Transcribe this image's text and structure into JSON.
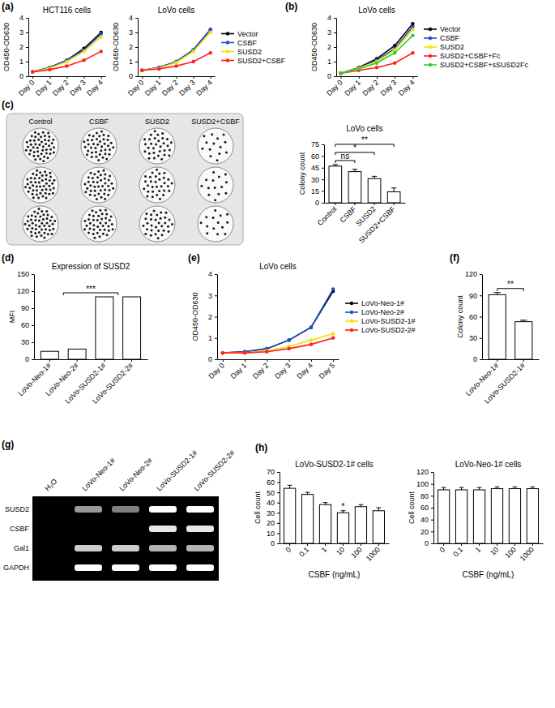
{
  "chart_data": [
    {
      "type": "line",
      "panel": "(a)",
      "title": "HCT116 cells",
      "y_label": "OD450-OD630",
      "categories": [
        "Day 0",
        "Day 1",
        "Day 2",
        "Day 3",
        "Day 4"
      ],
      "ylim": [
        0,
        4
      ],
      "yticks": [
        0,
        1,
        2,
        3,
        4
      ],
      "marker": "circle",
      "series": [
        {
          "color": "#000000",
          "values": [
            0.3,
            0.6,
            1.1,
            1.9,
            3.0
          ]
        },
        {
          "color": "#1f4fd0",
          "values": [
            0.3,
            0.6,
            1.1,
            1.8,
            2.9
          ]
        },
        {
          "color": "#f2e200",
          "values": [
            0.3,
            0.55,
            1.0,
            1.7,
            2.7
          ]
        },
        {
          "color": "#ff2020",
          "values": [
            0.3,
            0.45,
            0.7,
            1.1,
            1.7
          ]
        }
      ]
    },
    {
      "type": "line",
      "title": "LoVo cells",
      "y_label": "OD450-OD630",
      "categories": [
        "Day 0",
        "Day 1",
        "Day 2",
        "Day 3",
        "Day 4"
      ],
      "ylim": [
        0,
        4
      ],
      "yticks": [
        0,
        1,
        2,
        3,
        4
      ],
      "marker": "circle",
      "legend": "right",
      "series": [
        {
          "name": "Vector",
          "color": "#000000",
          "values": [
            0.4,
            0.6,
            1.0,
            1.8,
            3.2
          ]
        },
        {
          "name": "CSBF",
          "color": "#1f4fd0",
          "values": [
            0.4,
            0.6,
            1.0,
            1.8,
            3.2
          ]
        },
        {
          "name": "SUSD2",
          "color": "#f2e200",
          "values": [
            0.4,
            0.55,
            0.95,
            1.7,
            3.0
          ]
        },
        {
          "name": "SUSD2+CSBF",
          "color": "#ff2020",
          "values": [
            0.4,
            0.5,
            0.7,
            1.0,
            1.6
          ]
        }
      ]
    },
    {
      "type": "line",
      "panel": "(b)",
      "title": "LoVo cells",
      "y_label": "OD450-OD630",
      "categories": [
        "Day 0",
        "Day 1",
        "Day 2",
        "Day 3",
        "Day 4"
      ],
      "ylim": [
        0,
        4
      ],
      "yticks": [
        0,
        1,
        2,
        3,
        4
      ],
      "marker": "circle",
      "legend": "right",
      "series": [
        {
          "name": "Vector",
          "color": "#000000",
          "values": [
            0.2,
            0.6,
            1.2,
            2.1,
            3.6
          ]
        },
        {
          "name": "CSBF",
          "color": "#1f4fd0",
          "values": [
            0.2,
            0.55,
            1.1,
            1.9,
            3.4
          ]
        },
        {
          "name": "SUSD2",
          "color": "#f2e200",
          "values": [
            0.2,
            0.55,
            1.0,
            1.8,
            3.2
          ]
        },
        {
          "name": "SUSD2+CSBF+Fc",
          "color": "#ff2020",
          "values": [
            0.2,
            0.4,
            0.6,
            0.9,
            1.6
          ]
        },
        {
          "name": "SUSD2+CSBF+sSUSD2Fc",
          "color": "#33cc33",
          "values": [
            0.2,
            0.5,
            0.9,
            1.6,
            2.8
          ]
        }
      ]
    },
    {
      "type": "bar",
      "title": "LoVo cells",
      "y_label": "Colony count",
      "categories": [
        "Control",
        "CSBF",
        "SUSD2",
        "SUSD2+CSBF"
      ],
      "values": [
        47,
        40,
        31,
        14
      ],
      "errors": [
        2,
        3,
        3,
        5
      ],
      "color": "#ffffff",
      "ylim": [
        0,
        75
      ],
      "yticks": [
        0,
        15,
        30,
        45,
        60,
        75
      ],
      "annotations": [
        {
          "text": "ns",
          "from": "Control",
          "to": "CSBF"
        },
        {
          "text": "*",
          "from": "Control",
          "to": "SUSD2"
        },
        {
          "text": "**",
          "from": "Control",
          "to": "SUSD2+CSBF"
        }
      ]
    },
    {
      "type": "bar",
      "panel": "(d)",
      "title": "Expression of SUSD2",
      "y_label": "MFI",
      "categories": [
        "LoVo-Neo-1#",
        "LoVo-Neo-2#",
        "LoVo-SUSD2-1#",
        "LoVo-SUSD2-2#"
      ],
      "values": [
        14,
        18,
        110,
        110
      ],
      "color": "#ffffff",
      "ylim": [
        0,
        150
      ],
      "yticks": [
        0,
        30,
        60,
        90,
        120,
        150
      ],
      "annotations": [
        {
          "text": "***",
          "from": [
            "LoVo-Neo-1#",
            "LoVo-Neo-2#"
          ],
          "to": [
            "LoVo-SUSD2-1#",
            "LoVo-SUSD2-2#"
          ]
        }
      ]
    },
    {
      "type": "line",
      "panel": "(e)",
      "title": "LoVo cells",
      "y_label": "OD450-OD630",
      "categories": [
        "Day 0",
        "Day 1",
        "Day 2",
        "Day 3",
        "Day 4",
        "Day 5"
      ],
      "ylim": [
        0,
        4
      ],
      "yticks": [
        0,
        1,
        2,
        3,
        4
      ],
      "marker": "circle",
      "legend": "right",
      "series": [
        {
          "name": "LoVo-Neo-1#",
          "color": "#000000",
          "values": [
            0.3,
            0.35,
            0.5,
            0.9,
            1.5,
            3.2
          ]
        },
        {
          "name": "LoVo-Neo-2#",
          "color": "#1f4fd0",
          "values": [
            0.3,
            0.35,
            0.5,
            0.9,
            1.5,
            3.3
          ]
        },
        {
          "name": "LoVo-SUSD2-1#",
          "color": "#f2e200",
          "values": [
            0.3,
            0.3,
            0.4,
            0.6,
            0.9,
            1.2
          ]
        },
        {
          "name": "LoVo-SUSD2-2#",
          "color": "#ff2020",
          "values": [
            0.3,
            0.3,
            0.35,
            0.5,
            0.7,
            1.0
          ]
        }
      ]
    },
    {
      "type": "bar",
      "panel": "(f)",
      "y_label": "Colony count",
      "categories": [
        "LoVo-Neo-1#",
        "LoVo-SUSD2-1#"
      ],
      "values": [
        91,
        53
      ],
      "errors": [
        3,
        2
      ],
      "color": "#ffffff",
      "ylim": [
        0,
        120
      ],
      "yticks": [
        0,
        30,
        60,
        90,
        120
      ],
      "annotations": [
        {
          "text": "**",
          "from": "LoVo-Neo-1#",
          "to": "LoVo-SUSD2-1#"
        }
      ]
    },
    {
      "type": "bar",
      "panel": "(h)",
      "title": "LoVo-SUSD2-1# cells",
      "y_label": "Cell count",
      "x_label": "CSBF (ng/mL)",
      "categories": [
        "0",
        "0.1",
        "1",
        "10",
        "100",
        "1000"
      ],
      "values": [
        54,
        48,
        38,
        30,
        36,
        32
      ],
      "errors": [
        3,
        2,
        2,
        2,
        2,
        3
      ],
      "color": "#ffffff",
      "ylim": [
        0,
        70
      ],
      "yticks": [
        0,
        10,
        20,
        30,
        40,
        50,
        60,
        70
      ],
      "annotations": [
        {
          "text": "*",
          "at": "10"
        }
      ]
    },
    {
      "type": "bar",
      "title": "LoVo-Neo-1# cells",
      "y_label": "Cell count",
      "x_label": "CSBF (ng/mL)",
      "categories": [
        "0",
        "0.1",
        "1",
        "10",
        "100",
        "1000"
      ],
      "values": [
        90,
        90,
        90,
        92,
        92,
        92
      ],
      "errors": [
        4,
        4,
        4,
        3,
        3,
        3
      ],
      "color": "#ffffff",
      "ylim": [
        0,
        120
      ],
      "yticks": [
        0,
        20,
        40,
        60,
        80,
        100,
        120
      ]
    }
  ],
  "plate": {
    "panel": "(c)",
    "columns": [
      "Control",
      "CSBF",
      "SUSD2",
      "SUSD2+CSBF"
    ]
  },
  "gel": {
    "panel": "(g)",
    "lanes": [
      "H₂O",
      "LoVo-Neo-1#",
      "LoVo-Neo-2#",
      "LoVo-SUSD2-1#",
      "LoVo-SUSD2-2#"
    ],
    "rows": [
      {
        "label": "SUSD2",
        "bands": [
          0,
          0.6,
          0.5,
          1,
          1
        ]
      },
      {
        "label": "CSBF",
        "bands": [
          0,
          0,
          0,
          0.9,
          0.9
        ]
      },
      {
        "label": "Gal1",
        "bands": [
          0,
          0.8,
          0.8,
          0.7,
          0.7
        ]
      },
      {
        "label": "GAPDH",
        "bands": [
          0,
          1,
          1,
          1,
          1
        ]
      }
    ]
  }
}
